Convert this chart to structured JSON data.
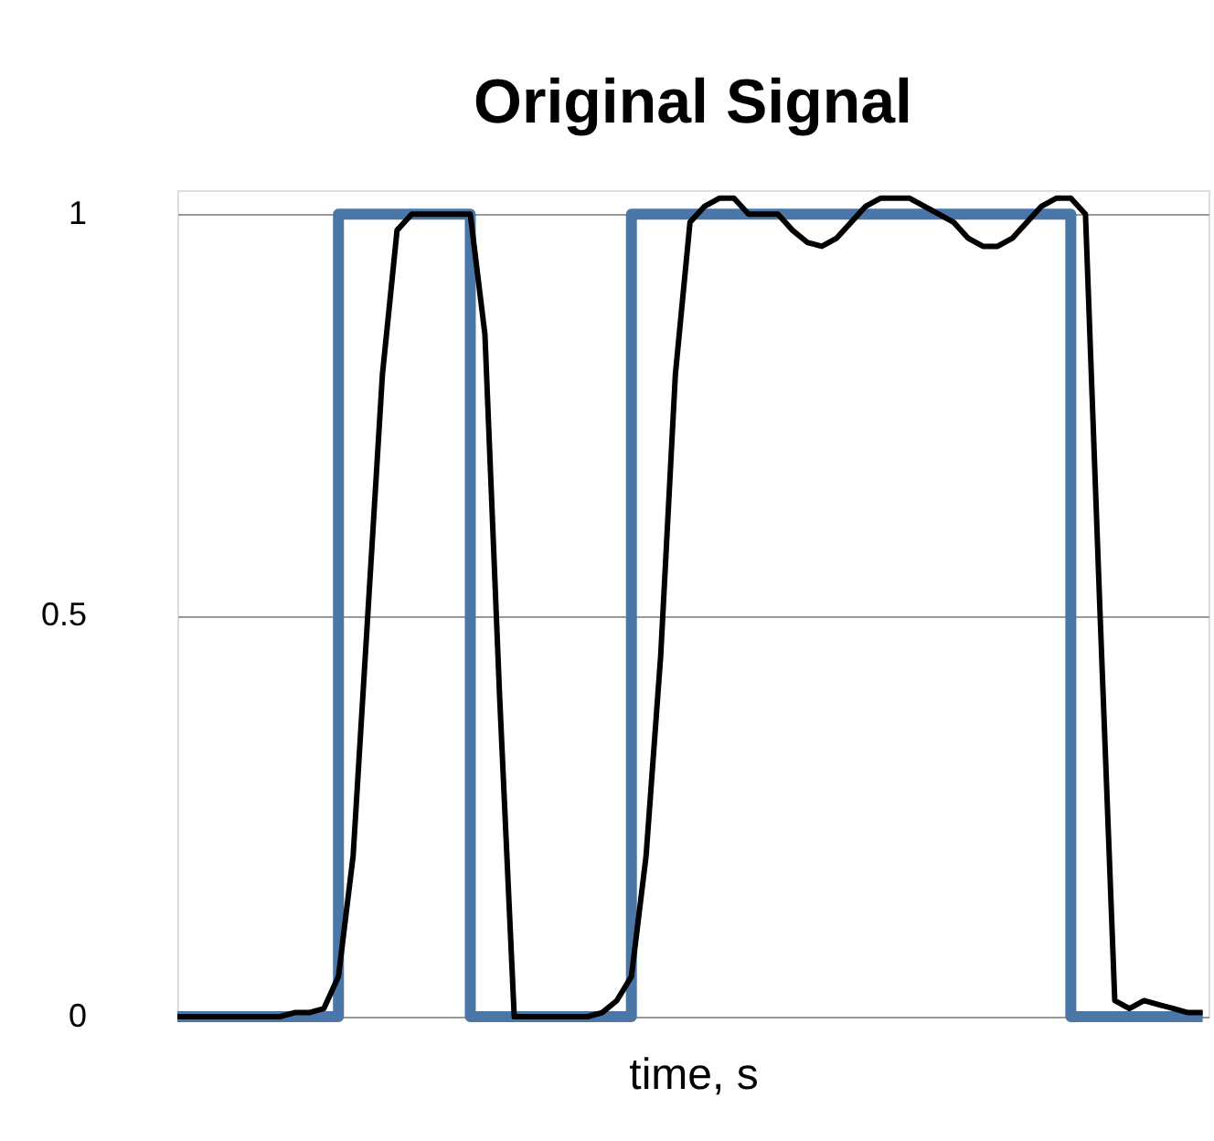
{
  "chart_data": {
    "type": "line",
    "title": "Original Signal",
    "xlabel": "time, s",
    "categories": [
      null,
      null,
      null,
      null,
      null,
      null,
      null,
      null,
      null,
      null,
      null,
      null,
      null,
      null,
      null,
      null,
      null,
      null,
      null,
      null,
      null,
      null,
      null,
      null,
      null,
      null,
      null,
      null,
      null,
      null,
      null,
      null,
      null,
      null,
      null,
      null,
      null,
      null,
      null,
      null,
      null,
      null,
      null,
      null,
      null,
      null,
      null,
      null,
      null,
      null,
      null,
      null,
      null,
      null,
      null,
      null,
      null,
      null,
      null,
      null,
      null,
      null,
      null,
      null,
      null,
      null,
      null,
      null,
      null,
      null,
      null
    ],
    "series": [
      {
        "type": "step",
        "color": "#4a76a8",
        "values": [
          0,
          0,
          0,
          0,
          0,
          0,
          0,
          0,
          0,
          0,
          0,
          1,
          1,
          1,
          1,
          1,
          1,
          1,
          1,
          1,
          0,
          0,
          0,
          0,
          0,
          0,
          0,
          0,
          0,
          0,
          0,
          1,
          1,
          1,
          1,
          1,
          1,
          1,
          1,
          1,
          1,
          1,
          1,
          1,
          1,
          1,
          1,
          1,
          1,
          1,
          1,
          1,
          1,
          1,
          1,
          1,
          1,
          1,
          1,
          1,
          1,
          0,
          0,
          0,
          0,
          0,
          0,
          0,
          0,
          0,
          0
        ]
      },
      {
        "type": "line",
        "color": "#000000",
        "values": [
          0,
          0,
          0,
          0,
          0,
          0,
          0,
          0,
          0.005,
          0.005,
          0.01,
          0.05,
          0.2,
          0.5,
          0.8,
          0.98,
          1,
          1,
          1,
          1,
          1,
          0.85,
          0.4,
          0,
          0,
          0,
          0,
          0,
          0,
          0.005,
          0.02,
          0.05,
          0.2,
          0.45,
          0.8,
          0.99,
          1.01,
          1.02,
          1.02,
          1,
          1,
          1,
          0.98,
          0.965,
          0.96,
          0.97,
          0.99,
          1.01,
          1.02,
          1.02,
          1.02,
          1.01,
          1,
          0.99,
          0.97,
          0.96,
          0.96,
          0.97,
          0.99,
          1.01,
          1.02,
          1.02,
          1,
          0.5,
          0.02,
          0.01,
          0.02,
          0.015,
          0.01,
          0.005,
          0.005
        ]
      }
    ],
    "ylim": [
      0,
      1.03
    ],
    "yticks": [
      0,
      0.5,
      1
    ],
    "grid": "y",
    "tick_labels": "y"
  }
}
